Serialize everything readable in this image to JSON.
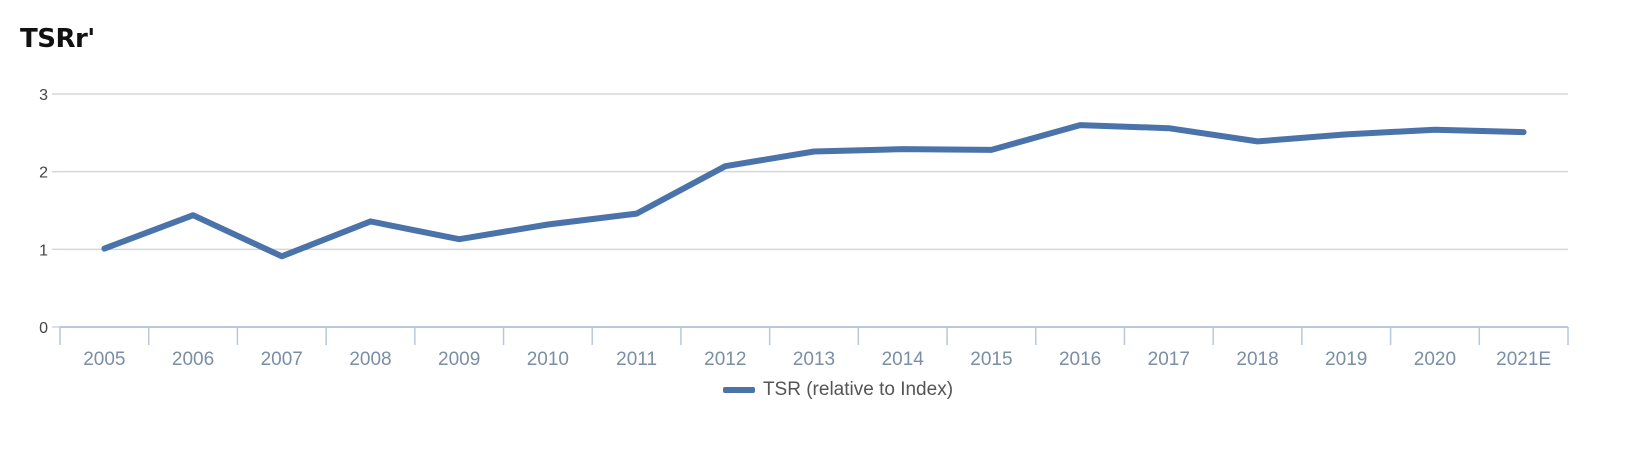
{
  "title": "TSRr'",
  "colors": {
    "series": "#4a73aa",
    "grid": "#d3d6da",
    "axis": "#b8c7da"
  },
  "chart_data": {
    "type": "line",
    "title": "TSRr'",
    "xlabel": "",
    "ylabel": "",
    "ylim": [
      0,
      3
    ],
    "yticks": [
      "0",
      "1",
      "2",
      "3"
    ],
    "categories": [
      "2005",
      "2006",
      "2007",
      "2008",
      "2009",
      "2010",
      "2011",
      "2012",
      "2013",
      "2014",
      "2015",
      "2016",
      "2017",
      "2018",
      "2019",
      "2020",
      "2021E"
    ],
    "grid": true,
    "legend_position": "bottom",
    "series": [
      {
        "name": "TSR (relative to Index)",
        "values": [
          1.01,
          1.44,
          0.91,
          1.36,
          1.13,
          1.32,
          1.46,
          2.07,
          2.26,
          2.29,
          2.28,
          2.6,
          2.56,
          2.39,
          2.48,
          2.54,
          2.51
        ]
      }
    ]
  }
}
